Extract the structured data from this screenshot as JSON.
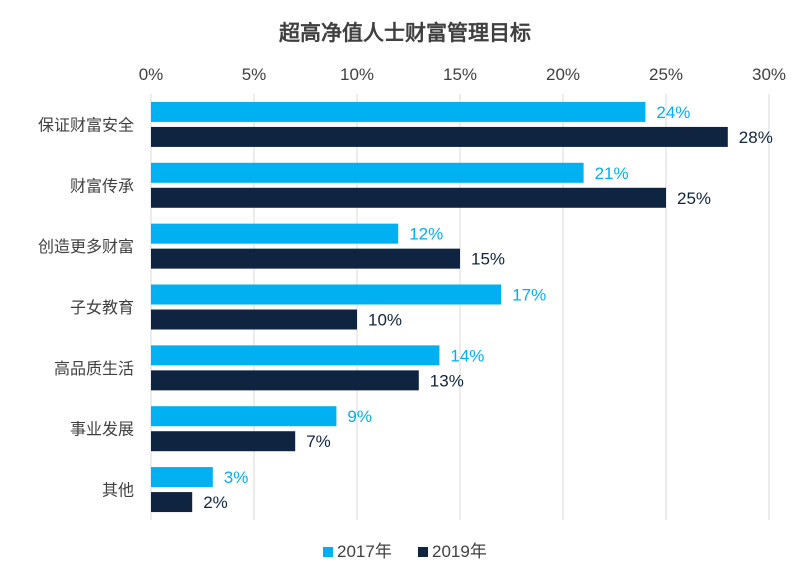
{
  "chart_data": {
    "type": "bar",
    "orientation": "horizontal",
    "title": "超高净值人士财富管理目标",
    "categories": [
      "保证财富安全",
      "财富传承",
      "创造更多财富",
      "子女教育",
      "高品质生活",
      "事业发展",
      "其他"
    ],
    "series": [
      {
        "name": "2017年",
        "values": [
          24,
          21,
          12,
          17,
          14,
          9,
          3
        ],
        "labels": [
          "24%",
          "21%",
          "12%",
          "17%",
          "14%",
          "9%",
          "3%"
        ],
        "color": "#00b0f0"
      },
      {
        "name": "2019年",
        "values": [
          28,
          25,
          15,
          10,
          13,
          7,
          2
        ],
        "labels": [
          "28%",
          "25%",
          "15%",
          "10%",
          "13%",
          "7%",
          "2%"
        ],
        "color": "#0f2440"
      }
    ],
    "xlim": [
      0,
      30
    ],
    "ticks": [
      0,
      5,
      10,
      15,
      20,
      25,
      30
    ],
    "tick_labels": [
      "0%",
      "5%",
      "10%",
      "15%",
      "20%",
      "25%",
      "30%"
    ],
    "grid": true,
    "legend_position": "bottom",
    "xaxis_position": "top",
    "colors": {
      "series1": "#00b0f0",
      "series2": "#0f2440",
      "text": "#404040",
      "grid": "#d9d9d9"
    }
  }
}
